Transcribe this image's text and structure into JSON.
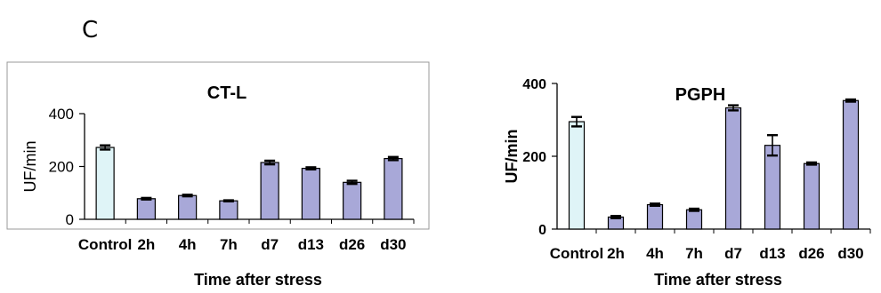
{
  "panel_label": "C",
  "chart_data": [
    {
      "type": "bar",
      "title": "CT-L",
      "xlabel": "Time after stress",
      "ylabel": "UF/min",
      "ylim": [
        0,
        400
      ],
      "yticks": [
        0,
        200,
        400
      ],
      "categories": [
        "Control",
        "2h",
        "4h",
        "7h",
        "d7",
        "d13",
        "d26",
        "d30"
      ],
      "values": [
        272,
        78,
        90,
        70,
        215,
        193,
        140,
        230
      ],
      "errors": [
        8,
        3,
        3,
        2,
        7,
        4,
        6,
        6
      ],
      "colors": [
        "#dff4f7",
        "#a8a8d8",
        "#a8a8d8",
        "#a8a8d8",
        "#a8a8d8",
        "#a8a8d8",
        "#a8a8d8",
        "#a8a8d8"
      ],
      "grid": false
    },
    {
      "type": "bar",
      "title": "PGPH",
      "xlabel": "Time after stress",
      "ylabel": "UF/min",
      "ylim": [
        0,
        400
      ],
      "yticks": [
        0,
        200,
        400
      ],
      "categories": [
        "Control",
        "2h",
        "4h",
        "7h",
        "d7",
        "d13",
        "d26",
        "d30"
      ],
      "values": [
        295,
        33,
        67,
        53,
        333,
        230,
        180,
        353
      ],
      "errors": [
        13,
        3,
        3,
        3,
        7,
        28,
        3,
        3
      ],
      "colors": [
        "#dff4f7",
        "#a8a8d8",
        "#a8a8d8",
        "#a8a8d8",
        "#a8a8d8",
        "#a8a8d8",
        "#a8a8d8",
        "#a8a8d8"
      ],
      "grid": false
    }
  ]
}
